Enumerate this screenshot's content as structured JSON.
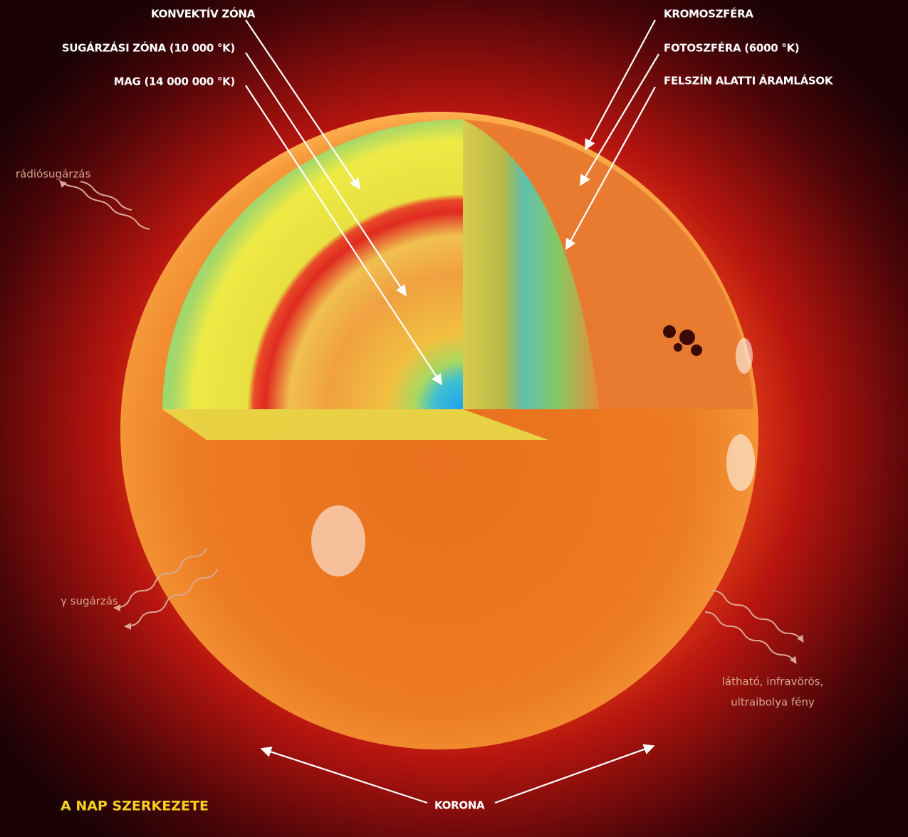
{
  "title": "A NAP SZERKEZETE",
  "interior_labels": [
    {
      "label": "KONVEKTÍV ZÓNA"
    },
    {
      "label": "SUGÁRZÁSI ZÓNA (10 000 °K)"
    },
    {
      "label": "MAG (14 000 000 °K)"
    }
  ],
  "surface_labels": [
    {
      "label": "KROMOSZFÉRA"
    },
    {
      "label": "FOTOSZFÉRA (6000 °K)"
    },
    {
      "label": "FELSZÍN ALATTI ÁRAMLÁSOK"
    }
  ],
  "radiation_labels": [
    {
      "lines": [
        "rádiósugárzás"
      ]
    },
    {
      "lines": [
        "γ sugárzás"
      ]
    },
    {
      "lines": [
        "látható, infravörös,",
        "ultraibolya fény"
      ]
    }
  ],
  "corona_label": "KORONA"
}
